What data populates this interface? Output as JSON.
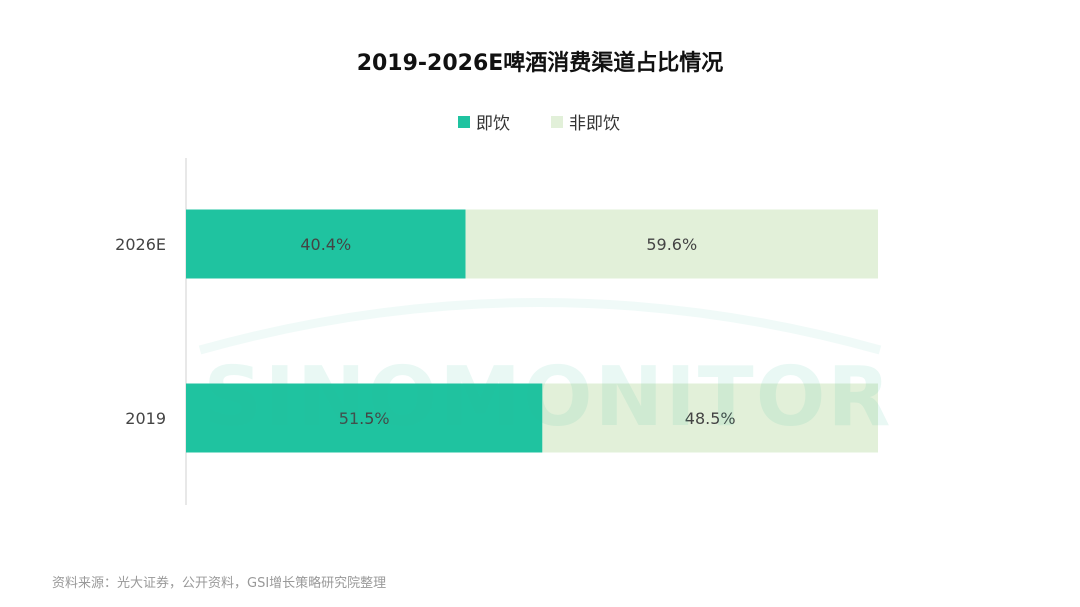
{
  "watermark": "SINOMONITOR",
  "source_note": "资料来源：光大证券，公开资料，GSI增长策略研究院整理",
  "colors": {
    "series_1": "#1fc3a0",
    "series_2": "#e2f0d9",
    "axis": "#d0d0d0"
  },
  "chart_data": {
    "type": "bar",
    "orientation": "horizontal",
    "stacked": true,
    "title": "2019-2026E啤酒消费渠道占比情况",
    "categories": [
      "2026E",
      "2019"
    ],
    "series": [
      {
        "name": "即饮",
        "values": [
          40.4,
          51.5
        ],
        "labels": [
          "40.4%",
          "51.5%"
        ]
      },
      {
        "name": "非即饮",
        "values": [
          59.6,
          48.5
        ],
        "labels": [
          "59.6%",
          "48.5%"
        ]
      }
    ],
    "xlim": [
      0,
      100
    ],
    "legend_position": "top-center",
    "grid": false
  }
}
